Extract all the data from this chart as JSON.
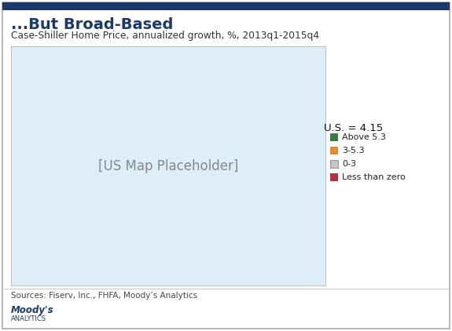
{
  "title": "...But Broad-Based",
  "subtitle": "Case-Shiller Home Price, annualized growth, %, 2013q1-2015q4",
  "us_value": "U.S. = 4.15",
  "legend_items": [
    {
      "label": "Above 5.3",
      "color": "#3a7d44"
    },
    {
      "label": "3-5.3",
      "color": "#e8892b"
    },
    {
      "label": "0-3",
      "color": "#c5c5c5"
    },
    {
      "label": "Less than zero",
      "color": "#b83040"
    }
  ],
  "sources": "Sources: Fiserv, Inc., FHFA, Moody’s Analytics",
  "moodys_line1": "Moody's",
  "moodys_line2": "ANALYTICS",
  "top_bar_color": "#1a3a6b",
  "border_color": "#aaaaaa",
  "title_color": "#1a3a6b",
  "bg_color": "#ffffff",
  "map_ocean_color": "#ddeef8",
  "fig_width": 5.75,
  "fig_height": 4.22,
  "dpi": 100
}
